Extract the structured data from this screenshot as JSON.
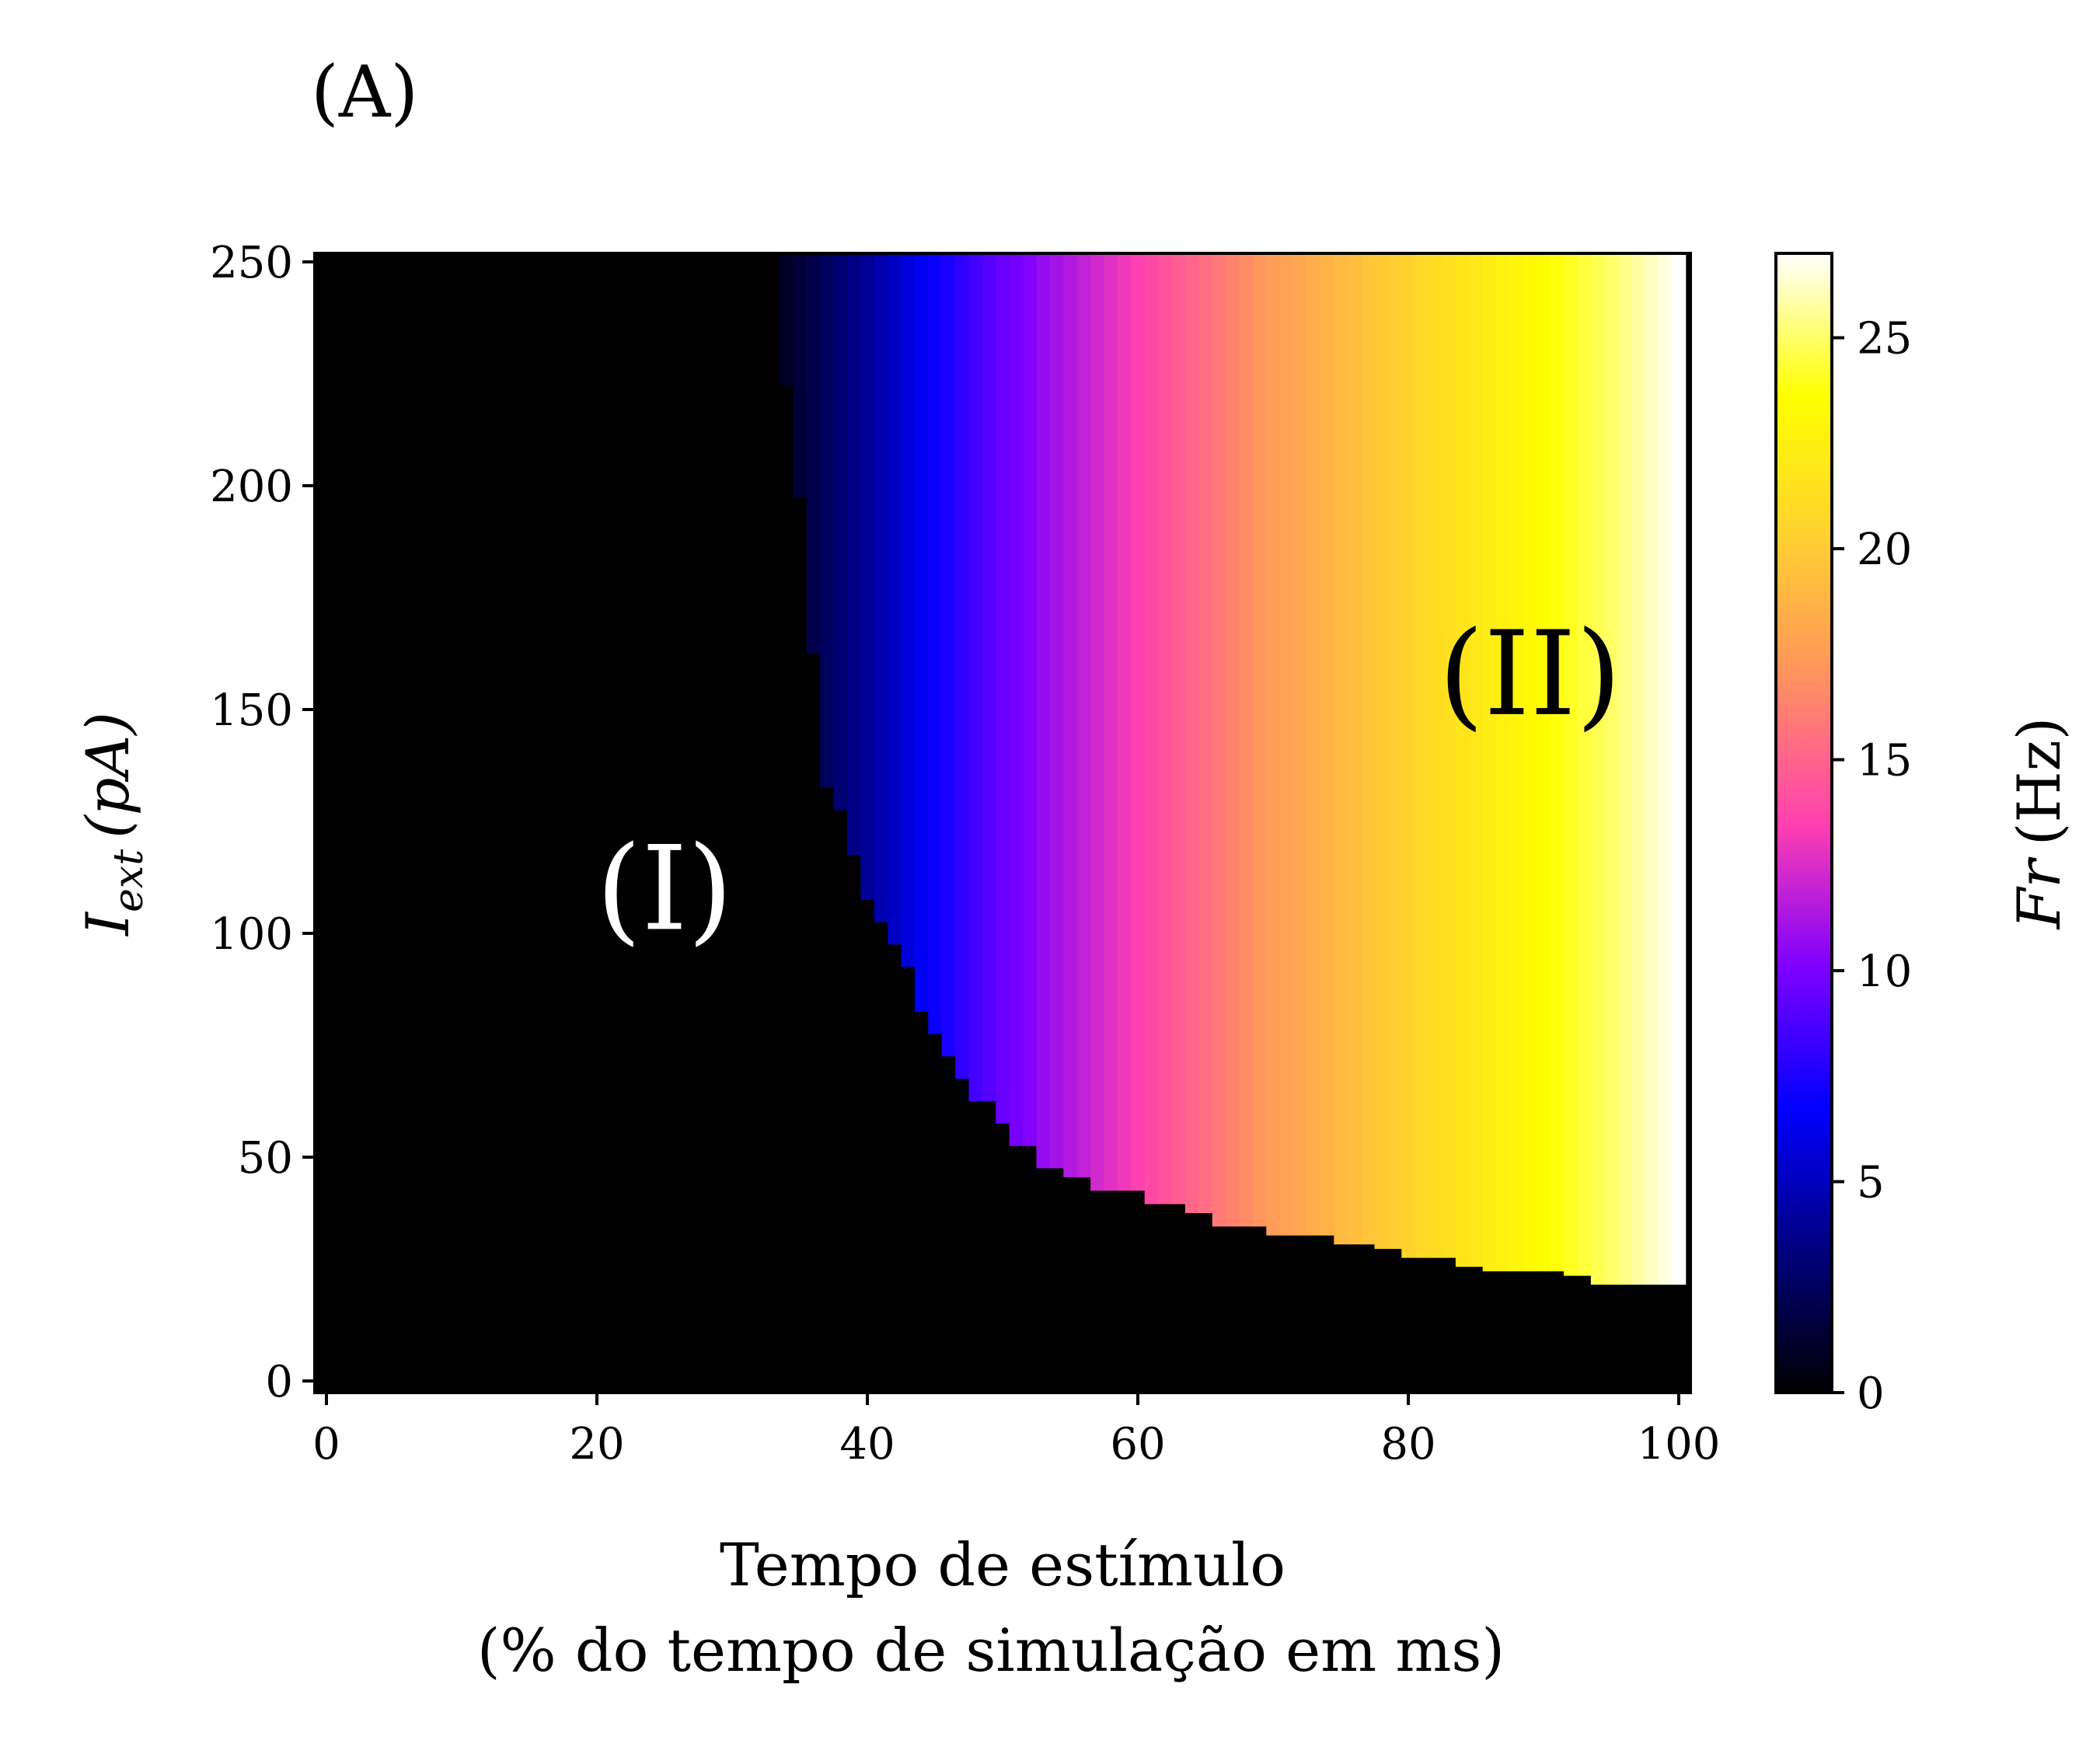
{
  "panel_label": "(A)",
  "colors": {
    "colormap": "gnuplot2",
    "stops": [
      "#000000",
      "#00007f",
      "#0000ff",
      "#7f00ff",
      "#ff40b0",
      "#ff9060",
      "#ffd030",
      "#ffff00",
      "#ffffff"
    ]
  },
  "chart_data": {
    "type": "heatmap",
    "title": "",
    "xlabel": "Tempo de estímulo",
    "xlabel_line2": "(% do tempo de simulação em ms)",
    "ylabel": "I_ext (pA)",
    "ylabel_main": "I",
    "ylabel_sub": "ext",
    "ylabel_unit": "(pA)",
    "xlim": [
      0,
      100
    ],
    "ylim": [
      0,
      250
    ],
    "xticks": [
      "0",
      "20",
      "40",
      "60",
      "80",
      "100"
    ],
    "yticks": [
      "0",
      "50",
      "100",
      "150",
      "200",
      "250"
    ],
    "x_resolution": 1,
    "y_resolution": 5,
    "description_of_values": "Firing rate: 0 Hz in region I; in region II the firing rate rises with stimulus time from about 1 Hz at the onset to about 27 Hz near 100%",
    "onset_boundary": {
      "x": [
        34,
        35,
        36,
        37,
        38,
        39,
        40,
        41,
        42,
        43,
        44,
        45,
        46,
        47,
        48,
        49,
        50,
        51,
        52,
        53,
        54,
        55,
        56,
        57,
        58,
        59,
        60,
        61,
        62,
        63,
        64,
        65,
        66,
        67,
        68,
        69,
        70,
        71,
        72,
        73,
        74,
        75,
        76,
        77,
        78,
        79,
        80,
        81,
        82,
        83,
        84,
        85,
        86,
        87,
        88,
        89,
        90,
        91,
        92,
        93,
        94,
        95,
        96,
        97,
        98,
        99,
        100
      ],
      "y_min": [
        225,
        200,
        165,
        135,
        130,
        120,
        110,
        105,
        100,
        95,
        85,
        80,
        75,
        70,
        65,
        65,
        60,
        55,
        55,
        50,
        50,
        48,
        48,
        45,
        45,
        45,
        45,
        42,
        42,
        42,
        40,
        40,
        37,
        37,
        37,
        37,
        35,
        35,
        35,
        35,
        35,
        33,
        33,
        33,
        32,
        32,
        30,
        30,
        30,
        30,
        28,
        28,
        27,
        27,
        27,
        27,
        27,
        27,
        26,
        26,
        24,
        24,
        24,
        24,
        24,
        24,
        24
      ]
    },
    "firing_rate_by_x": {
      "x": [
        34,
        40,
        45,
        50,
        55,
        60,
        65,
        70,
        75,
        80,
        85,
        90,
        95,
        100
      ],
      "value": [
        1,
        4,
        7,
        9.5,
        11.5,
        13.5,
        15.5,
        17.5,
        19,
        20.5,
        22,
        23.5,
        25,
        27
      ]
    },
    "colorbar": {
      "label": "Fr (Hz)",
      "label_main": "Fr",
      "label_unit": "(Hz)",
      "range": [
        0,
        27
      ],
      "ticks": [
        "0",
        "5",
        "10",
        "15",
        "20",
        "25"
      ]
    },
    "annotations": [
      {
        "text": "(I)",
        "x": 25,
        "y": 110,
        "color": "#ffffff"
      },
      {
        "text": "(II)",
        "x": 89,
        "y": 158,
        "color": "#000000"
      }
    ]
  }
}
